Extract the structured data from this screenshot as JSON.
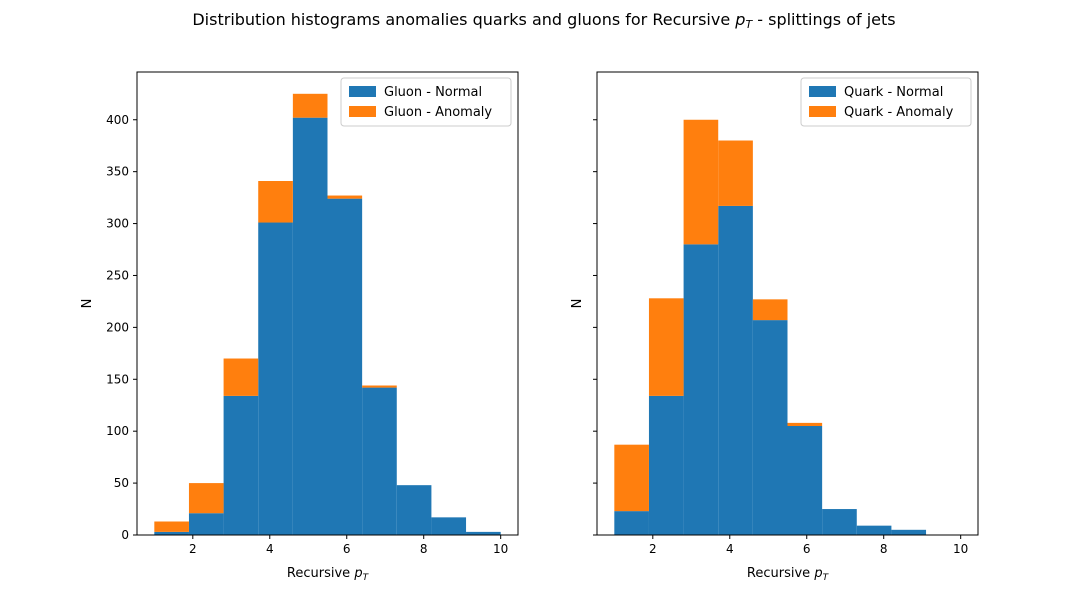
{
  "figure": {
    "title_prefix": "Distribution histograms anomalies quarks and gluons for Recursive ",
    "title_math_base": "p",
    "title_math_sub": "T",
    "title_suffix": " - splittings of jets"
  },
  "colors": {
    "normal": "#1f77b4",
    "anomaly": "#ff7f0e"
  },
  "chart_data": [
    {
      "type": "bar",
      "stacked": true,
      "xlabel_prefix": "Recursive ",
      "xlabel_math_base": "p",
      "xlabel_math_sub": "T",
      "ylabel": "N",
      "bin_edges": [
        1.0,
        1.9,
        2.8,
        3.7,
        4.6,
        5.5,
        6.4,
        7.3,
        8.2,
        9.1,
        10.0
      ],
      "xlim": [
        0.55,
        10.45
      ],
      "ylim": [
        0,
        446
      ],
      "xticks": [
        2,
        4,
        6,
        8,
        10
      ],
      "yticks": [
        0,
        50,
        100,
        150,
        200,
        250,
        300,
        350,
        400
      ],
      "ytick_labels_visible": true,
      "legend_position": "upper right",
      "series": [
        {
          "name": "Gluon - Normal",
          "color": "#1f77b4",
          "values": [
            3,
            21,
            134,
            301,
            402,
            324,
            142,
            48,
            17,
            3
          ]
        },
        {
          "name": "Gluon - Anomaly",
          "color": "#ff7f0e",
          "values": [
            10,
            29,
            36,
            40,
            23,
            3,
            2,
            0,
            0,
            0
          ]
        }
      ]
    },
    {
      "type": "bar",
      "stacked": true,
      "xlabel_prefix": "Recursive ",
      "xlabel_math_base": "p",
      "xlabel_math_sub": "T",
      "ylabel": "N",
      "bin_edges": [
        1.0,
        1.9,
        2.8,
        3.7,
        4.6,
        5.5,
        6.4,
        7.3,
        8.2,
        9.1,
        10.0
      ],
      "xlim": [
        0.55,
        10.45
      ],
      "ylim": [
        0,
        446
      ],
      "xticks": [
        2,
        4,
        6,
        8,
        10
      ],
      "yticks": [
        0,
        50,
        100,
        150,
        200,
        250,
        300,
        350,
        400
      ],
      "ytick_labels_visible": false,
      "legend_position": "upper right",
      "series": [
        {
          "name": "Quark - Normal",
          "color": "#1f77b4",
          "values": [
            23,
            134,
            280,
            317,
            207,
            105,
            25,
            9,
            5,
            0
          ]
        },
        {
          "name": "Quark - Anomaly",
          "color": "#ff7f0e",
          "values": [
            64,
            94,
            120,
            63,
            20,
            3,
            0,
            0,
            0,
            0
          ]
        }
      ]
    }
  ]
}
